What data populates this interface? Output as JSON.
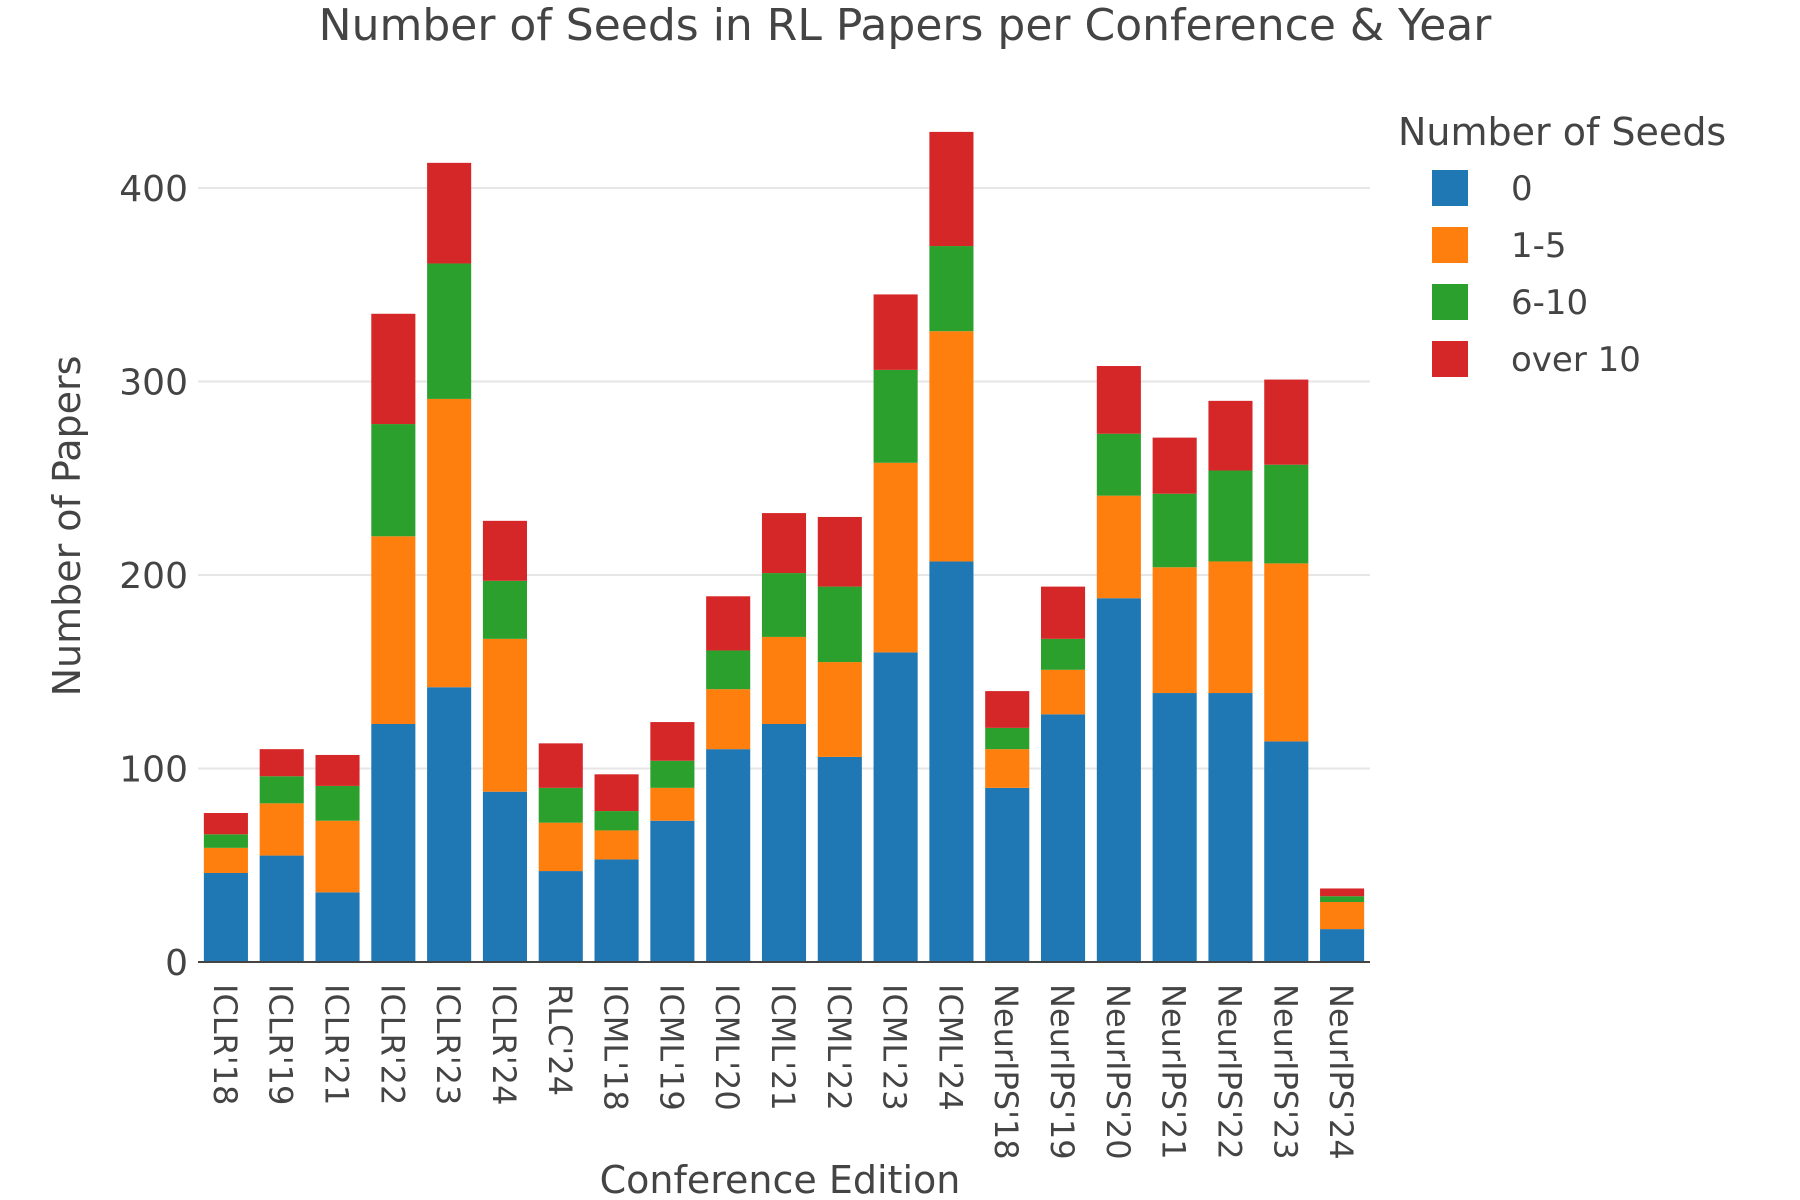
{
  "chart_data": {
    "type": "bar",
    "stacked": true,
    "title": "Number of Seeds in RL Papers per Conference & Year",
    "xlabel": "Conference Edition",
    "ylabel": "Number of Papers",
    "ylim": [
      0,
      440
    ],
    "yticks": [
      "0",
      "100",
      "200",
      "300",
      "400"
    ],
    "grid": true,
    "legend": {
      "title": "Number of Seeds",
      "position": "top-right"
    },
    "categories": [
      "ICLR'18",
      "ICLR'19",
      "ICLR'21",
      "ICLR'22",
      "ICLR'23",
      "ICLR'24",
      "RLC'24",
      "ICML'18",
      "ICML'19",
      "ICML'20",
      "ICML'21",
      "ICML'22",
      "ICML'23",
      "ICML'24",
      "NeurIPS'18",
      "NeurIPS'19",
      "NeurIPS'20",
      "NeurIPS'21",
      "NeurIPS'22",
      "NeurIPS'23",
      "NeurIPS'24"
    ],
    "series": [
      {
        "name": "0",
        "color": "#1f77b4",
        "values": [
          46,
          55,
          36,
          123,
          142,
          88,
          47,
          53,
          73,
          110,
          123,
          106,
          160,
          207,
          90,
          128,
          188,
          139,
          139,
          114,
          17
        ]
      },
      {
        "name": "1-5",
        "color": "#ff7f0e",
        "values": [
          13,
          27,
          37,
          97,
          149,
          79,
          25,
          15,
          17,
          31,
          45,
          49,
          98,
          119,
          20,
          23,
          53,
          65,
          68,
          92,
          14
        ]
      },
      {
        "name": "6-10",
        "color": "#2ca02c",
        "values": [
          7,
          14,
          18,
          58,
          70,
          30,
          18,
          10,
          14,
          20,
          33,
          39,
          48,
          44,
          11,
          16,
          32,
          38,
          47,
          51,
          3
        ]
      },
      {
        "name": "over 10",
        "color": "#d62728",
        "values": [
          11,
          14,
          16,
          57,
          52,
          31,
          23,
          19,
          20,
          28,
          31,
          36,
          39,
          59,
          19,
          27,
          35,
          29,
          36,
          44,
          4
        ]
      }
    ]
  }
}
